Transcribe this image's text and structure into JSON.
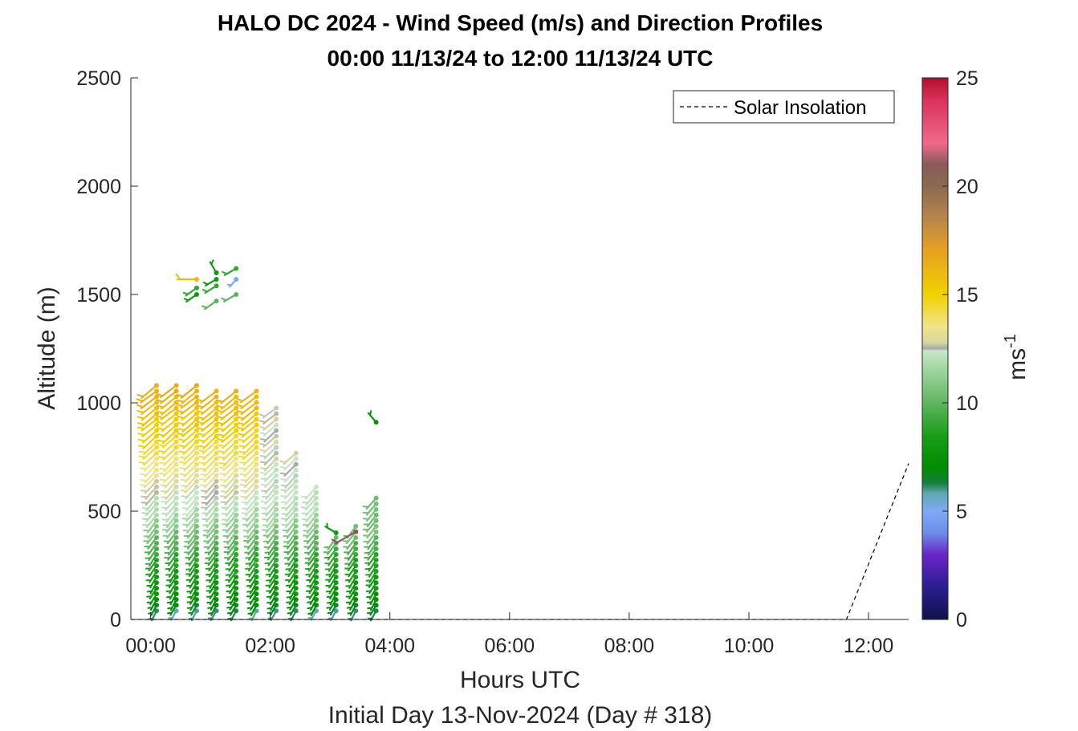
{
  "chart_data": {
    "type": "wind-barb-profile",
    "title": "HALO DC 2024 - Wind Speed (m/s) and Direction Profiles",
    "subtitle": "00:00 11/13/24 to 12:00 11/13/24  UTC",
    "xlabel": "Hours UTC",
    "xlabel2": "Initial Day 13-Nov-2024 (Day # 318)",
    "ylabel": "Altitude (m)",
    "xlim": [
      -0.33,
      12.67
    ],
    "ylim": [
      0,
      2500
    ],
    "xticks": [
      0,
      2,
      4,
      6,
      8,
      10,
      12
    ],
    "xtick_labels": [
      "00:00",
      "02:00",
      "04:00",
      "06:00",
      "08:00",
      "10:00",
      "12:00"
    ],
    "yticks": [
      0,
      500,
      1000,
      1500,
      2000,
      2500
    ],
    "ytick_labels": [
      "0",
      "500",
      "1000",
      "1500",
      "2000",
      "2500"
    ],
    "colorbar": {
      "label": "ms",
      "label_exponent": "-1",
      "range": [
        0,
        25
      ],
      "ticks": [
        0,
        5,
        10,
        15,
        20,
        25
      ],
      "tick_labels": [
        "0",
        "5",
        "10",
        "15",
        "20",
        "25"
      ],
      "colormap_stops": [
        [
          0,
          "#10124a"
        ],
        [
          1.5,
          "#2a1e90"
        ],
        [
          3,
          "#6a26c8"
        ],
        [
          4,
          "#6b8ee8"
        ],
        [
          5,
          "#7fa9f5"
        ],
        [
          5.8,
          "#5fa9b5"
        ],
        [
          6.3,
          "#157f3c"
        ],
        [
          7,
          "#008c00"
        ],
        [
          8.5,
          "#1a9e1a"
        ],
        [
          10,
          "#5fb55f"
        ],
        [
          11.5,
          "#9fd59f"
        ],
        [
          12.4,
          "#c8e6c8"
        ],
        [
          12.5,
          "#a8a8a8"
        ],
        [
          12.8,
          "#d8d8a0"
        ],
        [
          13.5,
          "#f0e48a"
        ],
        [
          15,
          "#f0d200"
        ],
        [
          17,
          "#e8a020"
        ],
        [
          18.5,
          "#b8864b"
        ],
        [
          20,
          "#8a6a4e"
        ],
        [
          21,
          "#8a5a5a"
        ],
        [
          22,
          "#f06a8a"
        ],
        [
          24,
          "#d8305a"
        ],
        [
          25,
          "#b0102c"
        ]
      ]
    },
    "legend": {
      "entries": [
        "Solar Insolation"
      ],
      "location": "top-right"
    },
    "profile_times_hours": [
      0.1,
      0.43,
      0.77,
      1.1,
      1.43,
      1.77,
      2.1,
      2.43,
      2.77,
      3.1,
      3.43,
      3.77
    ],
    "profile_tops_m": [
      1100,
      1100,
      1090,
      1060,
      1060,
      1060,
      1000,
      780,
      620,
      390,
      430,
      580
    ],
    "series": [
      {
        "name": "Solar Insolation",
        "type": "line",
        "style": "dashed",
        "x": [
          -0.33,
          11.63,
          12.67
        ],
        "y": [
          0,
          0,
          720
        ]
      }
    ],
    "upper_barbs": [
      {
        "t": 0.77,
        "alt": 1570,
        "speed": 16,
        "dir": 270
      },
      {
        "t": 1.1,
        "alt": 1570,
        "speed": 8,
        "dir": 240
      },
      {
        "t": 0.77,
        "alt": 1530,
        "speed": 9,
        "dir": 235
      },
      {
        "t": 1.1,
        "alt": 1540,
        "speed": 9,
        "dir": 238
      },
      {
        "t": 0.77,
        "alt": 1500,
        "speed": 8,
        "dir": 235
      },
      {
        "t": 1.1,
        "alt": 1470,
        "speed": 10,
        "dir": 235
      },
      {
        "t": 1.43,
        "alt": 1500,
        "speed": 10,
        "dir": 240
      },
      {
        "t": 1.43,
        "alt": 1570,
        "speed": 5,
        "dir": 220
      },
      {
        "t": 1.43,
        "alt": 1620,
        "speed": 9,
        "dir": 240
      },
      {
        "t": 1.1,
        "alt": 1600,
        "speed": 8,
        "dir": 330
      },
      {
        "t": 3.77,
        "alt": 910,
        "speed": 7.5,
        "dir": 320
      },
      {
        "t": 3.1,
        "alt": 400,
        "speed": 8,
        "dir": 300
      },
      {
        "t": 3.43,
        "alt": 405,
        "speed": 21,
        "dir": 240
      }
    ]
  }
}
